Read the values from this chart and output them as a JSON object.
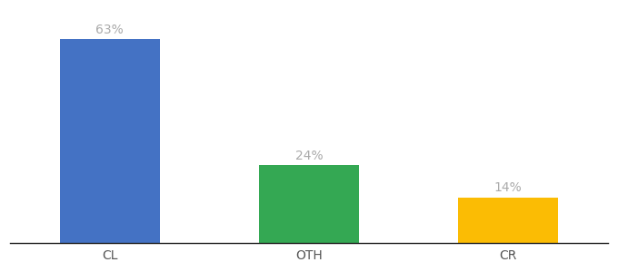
{
  "categories": [
    "CL",
    "OTH",
    "CR"
  ],
  "values": [
    63,
    24,
    14
  ],
  "labels": [
    "63%",
    "24%",
    "14%"
  ],
  "bar_colors": [
    "#4472C4",
    "#34A853",
    "#FBBC04"
  ],
  "background_color": "#ffffff",
  "ylim": [
    0,
    72
  ],
  "bar_width": 0.5,
  "label_fontsize": 10,
  "tick_fontsize": 10,
  "label_color": "#aaaaaa"
}
